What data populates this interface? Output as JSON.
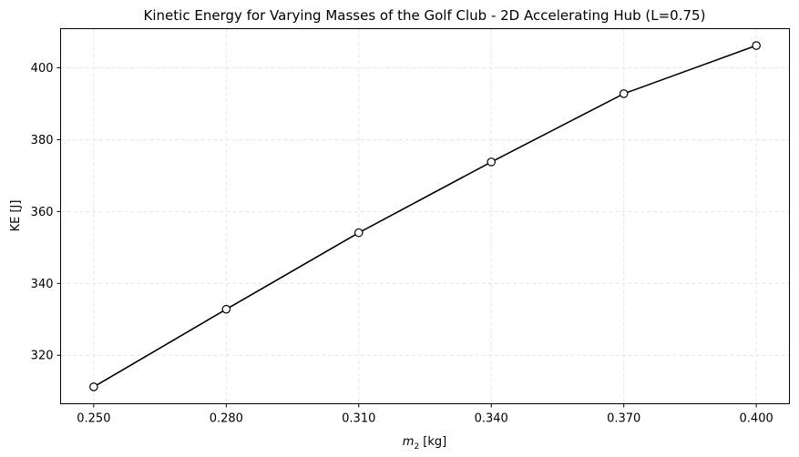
{
  "chart_data": {
    "type": "line",
    "title": "Kinetic Energy for Varying Masses of the Golf Club - 2D Accelerating Hub (L=0.75)",
    "xlabel_main": "m",
    "xlabel_sub": "2",
    "xlabel_unit": " [kg]",
    "ylabel": "KE [J]",
    "x": [
      0.25,
      0.28,
      0.31,
      0.34,
      0.37,
      0.4
    ],
    "y": [
      311.2,
      332.8,
      354.1,
      373.8,
      392.8,
      406.2
    ],
    "xticks": [
      "0.250",
      "0.280",
      "0.310",
      "0.340",
      "0.370",
      "0.400"
    ],
    "yticks": [
      320,
      340,
      360,
      380,
      400
    ],
    "xlim": [
      0.2425,
      0.4075
    ],
    "ylim": [
      306.5,
      410.9
    ],
    "grid": true,
    "line_color": "#000000",
    "marker_fill": "#ffffff",
    "grid_color": "#e6e6e6"
  }
}
